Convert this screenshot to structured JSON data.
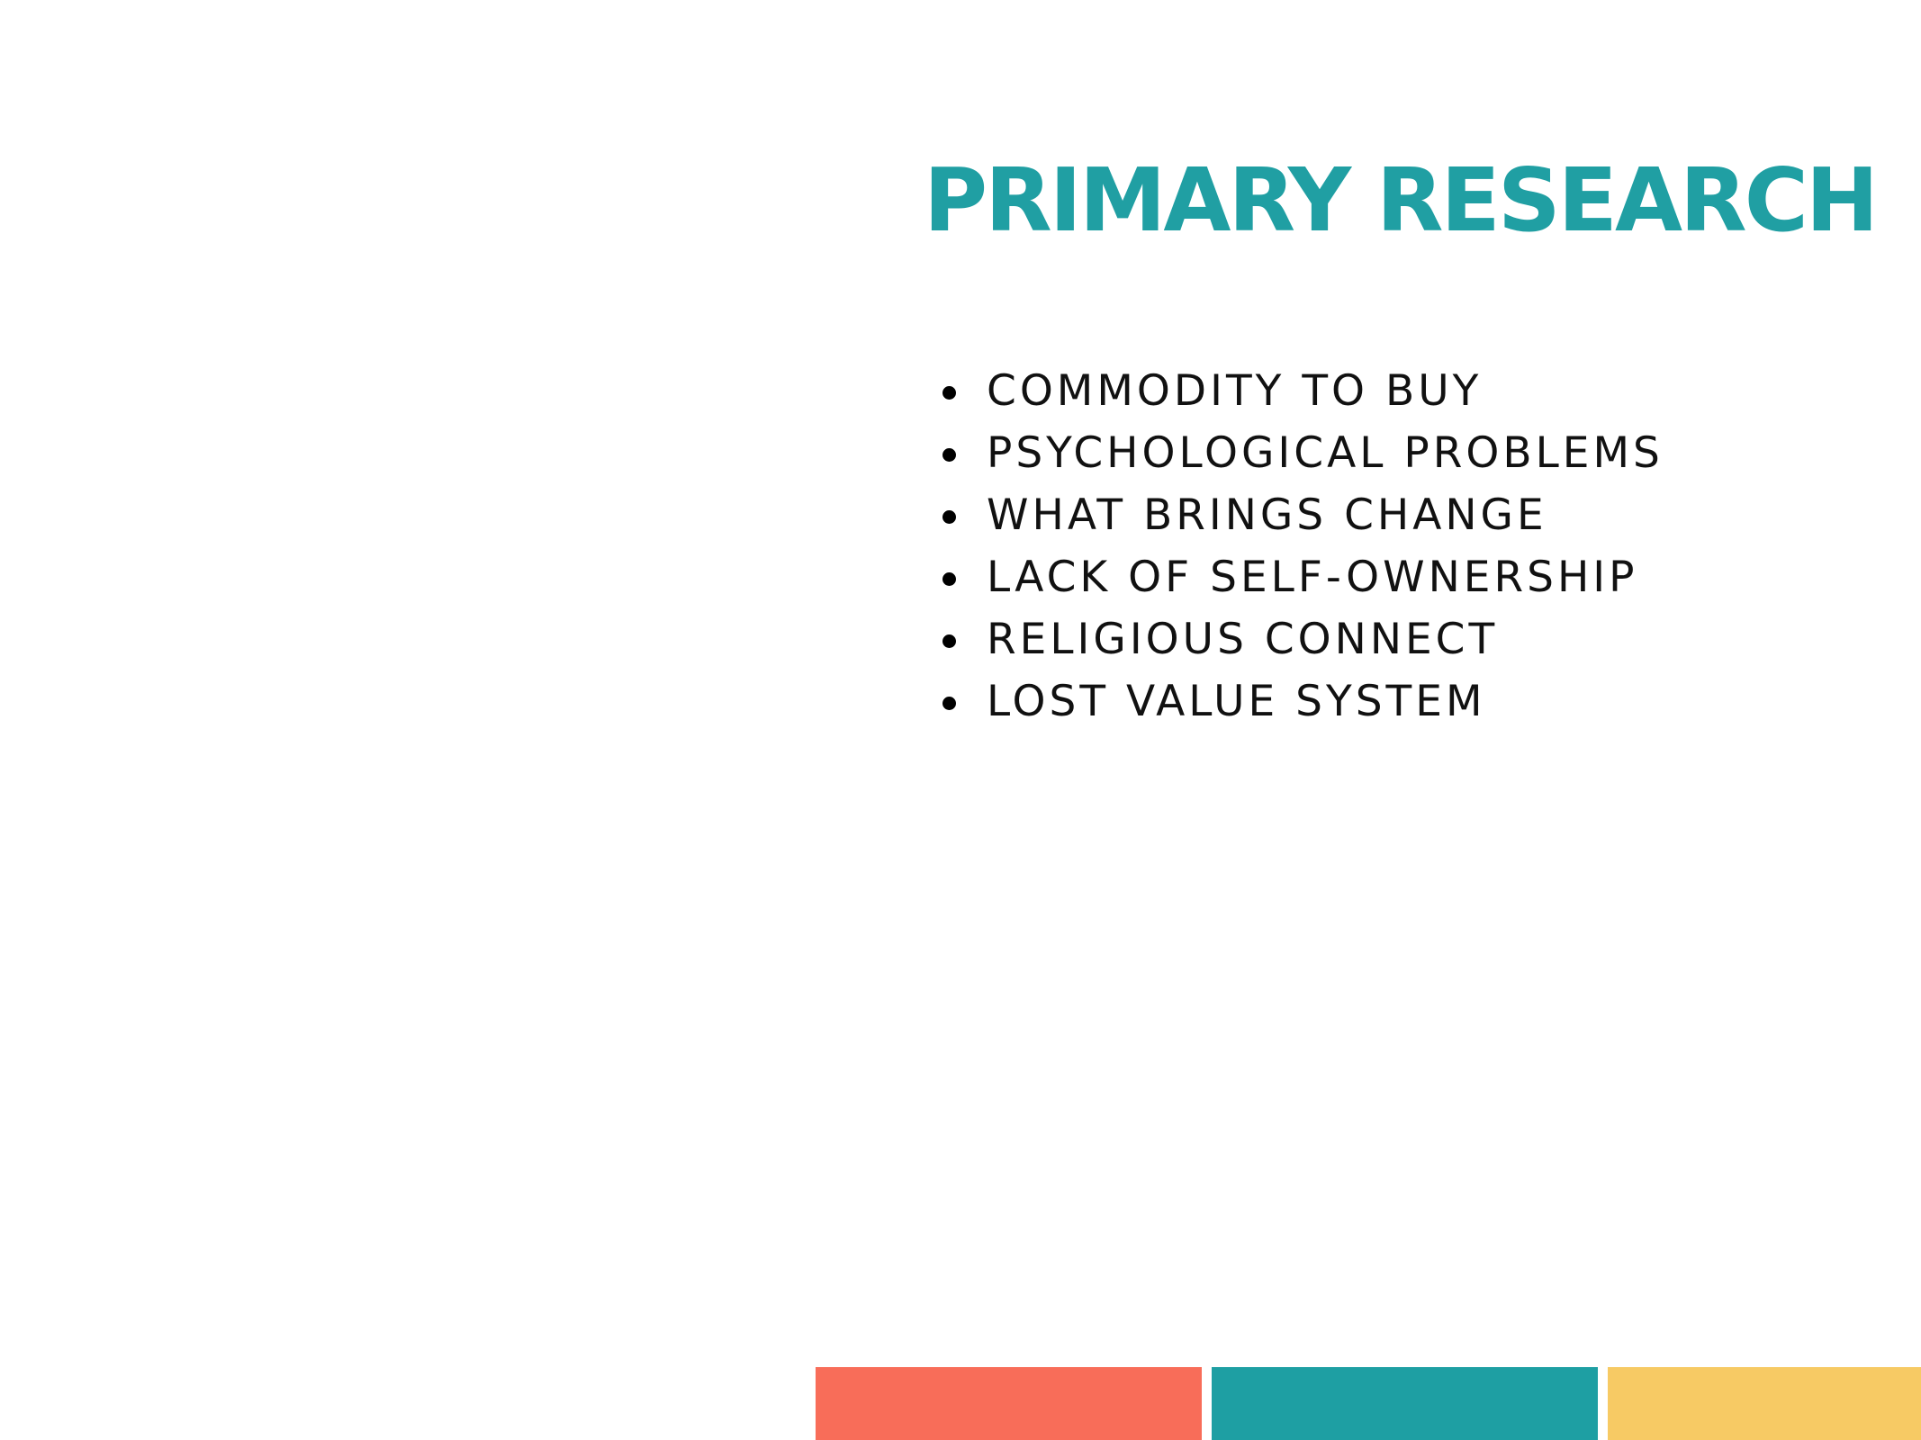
{
  "slide": {
    "title": "PRIMARY RESEARCH",
    "bullets": [
      "COMMODITY TO BUY",
      "PSYCHOLOGICAL PROBLEMS",
      "WHAT BRINGS CHANGE",
      "LACK OF SELF-OWNERSHIP",
      "RELIGIOUS CONNECT",
      "LOST VALUE SYSTEM"
    ]
  },
  "colors": {
    "background": "#ffffff",
    "title": "#209fa3",
    "text": "#111111",
    "bullet": "#000000",
    "coral": "#f86d59",
    "teal": "#1e9fa3",
    "yellow": "#f7ca64"
  }
}
